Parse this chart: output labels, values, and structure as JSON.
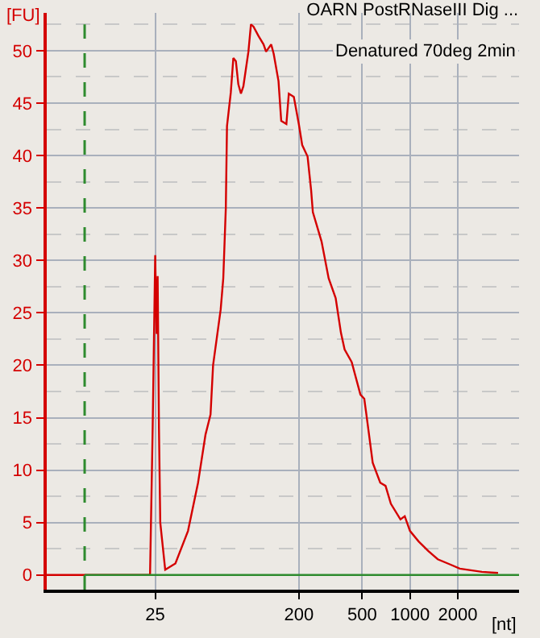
{
  "chart_data": {
    "type": "line",
    "title": "OARN PostRNaseIII Dig ...",
    "subtitle": "Denatured 70deg 2min",
    "xlabel": "[nt]",
    "ylabel": "[FU]",
    "log": "x",
    "xlim": [
      5.2,
      4850
    ],
    "xticks": [
      25,
      200,
      500,
      1000,
      2000
    ],
    "ylim": [
      -1.4,
      53.6
    ],
    "yticks": [
      0,
      5,
      10,
      15,
      20,
      25,
      30,
      35,
      40,
      45,
      50
    ],
    "grid": true,
    "marker": "none",
    "line_style": "solid",
    "series": [
      {
        "color": "#d40000",
        "x": [
          5.2,
          12.1,
          23.2,
          24.1,
          25,
          25.5,
          25.9,
          26.4,
          26.9,
          28.9,
          33.5,
          40.2,
          46.5,
          51.8,
          55.7,
          57.8,
          64.5,
          67,
          69.5,
          70.7,
          74.7,
          77.5,
          80.4,
          83.3,
          86.5,
          89.6,
          96.4,
          100,
          103.7,
          111.5,
          120,
          124.5,
          134,
          139,
          149,
          155,
          167,
          173,
          186,
          200,
          210,
          227,
          239,
          245,
          278,
          308,
          341,
          368,
          388,
          430,
          488,
          516,
          532,
          557,
          583,
          650,
          702,
          758,
          871,
          927,
          1000,
          1133,
          1301,
          1495,
          1791,
          2056,
          2830,
          3580
        ],
        "values": [
          0,
          0,
          0,
          14,
          30.5,
          23,
          28.5,
          14,
          5,
          0.5,
          1.1,
          4.2,
          8.8,
          13.4,
          15.3,
          20,
          25.3,
          28.3,
          35,
          42.8,
          46,
          49.3,
          49,
          46.8,
          45.9,
          46.6,
          49.9,
          52.5,
          52.3,
          51.4,
          50.6,
          49.9,
          50.6,
          49.7,
          47.1,
          43.3,
          43,
          45.9,
          45.6,
          43,
          41,
          39.9,
          36.7,
          34.6,
          31.8,
          28.3,
          26.4,
          23.1,
          21.5,
          20.3,
          17.2,
          16.8,
          15.3,
          13,
          10.7,
          8.8,
          8.5,
          6.8,
          5.3,
          5.6,
          4.2,
          3.2,
          2.3,
          1.5,
          1,
          0.6,
          0.3,
          0.2
        ]
      },
      {
        "color": "#2e8b2e",
        "x": [
          9,
          4850
        ],
        "values": [
          0,
          0
        ]
      }
    ],
    "ref_lines": [
      {
        "axis": "x",
        "value": 9,
        "color": "#2e8b2e",
        "line_style": "dashed"
      }
    ]
  }
}
